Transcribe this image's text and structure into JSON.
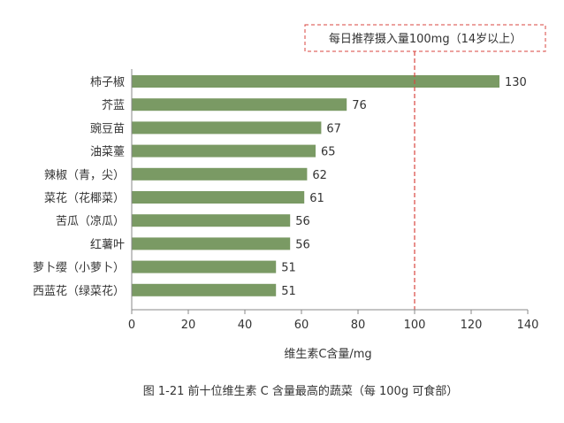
{
  "chart_data": {
    "type": "bar",
    "orientation": "horizontal",
    "categories": [
      "柿子椒",
      "芥蓝",
      "豌豆苗",
      "油菜薹",
      "辣椒（青，尖）",
      "菜花（花椰菜）",
      "苦瓜（凉瓜）",
      "红薯叶",
      "萝卜缨（小萝卜）",
      "西蓝花（绿菜花）"
    ],
    "values": [
      130,
      76,
      67,
      65,
      62,
      61,
      56,
      56,
      51,
      51
    ],
    "xlabel": "维生素C含量/mg",
    "xlim": [
      0,
      140
    ],
    "xticks": [
      0,
      20,
      40,
      60,
      80,
      100,
      120,
      140
    ],
    "reference_line": {
      "value": 100,
      "label": "每日推荐摄入量100mg（14岁以上）"
    },
    "caption": "图 1-21   前十位维生素 C 含量最高的蔬菜（每 100g 可食部）",
    "colors": {
      "bar": "#7a9a64",
      "reference": "#d9453f",
      "axis": "#888888"
    }
  }
}
